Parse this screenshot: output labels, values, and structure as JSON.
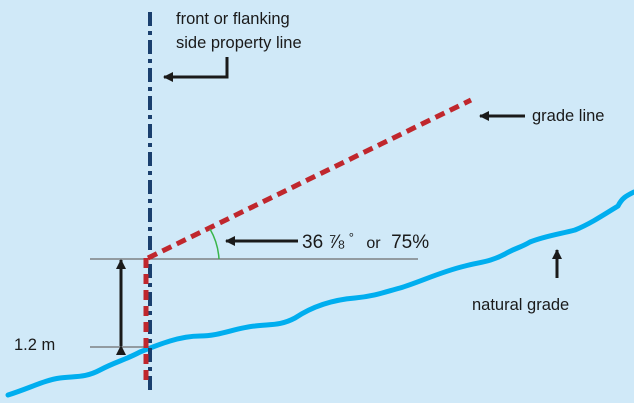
{
  "labels": {
    "property_line_line1": "front or flanking",
    "property_line_line2": "side property line",
    "grade_line": "grade line",
    "angle_value": "36 ⅞",
    "angle_degree": "°",
    "angle_or": "or",
    "angle_percent": "75%",
    "natural_grade": "natural grade",
    "height": "1.2 m"
  },
  "colors": {
    "background": "#d0e9f8",
    "property_line": "#1a3f6e",
    "grade_line": "#c0272d",
    "natural_grade": "#00aeef",
    "angle_arc": "#39b54a",
    "reference_lines": "#6d6d6d",
    "arrows": "#1a1a1a"
  }
}
